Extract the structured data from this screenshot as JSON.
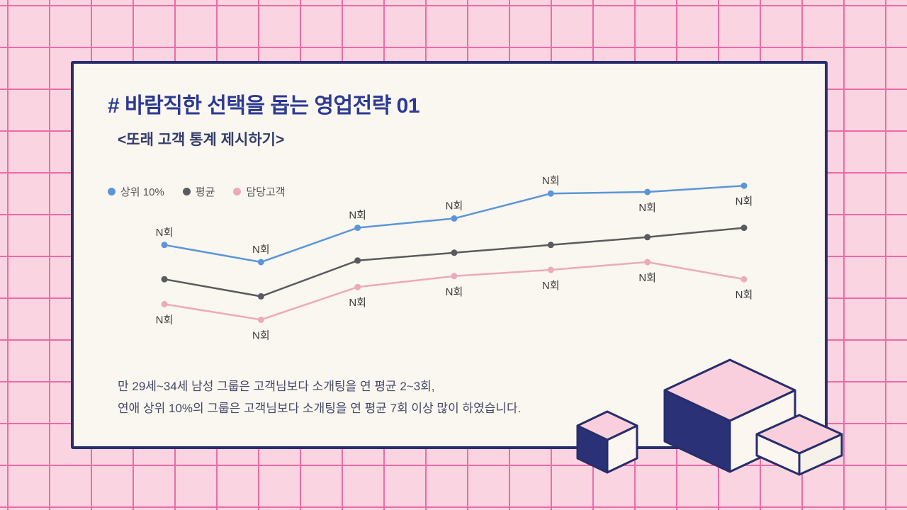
{
  "page": {
    "title": "# 바람직한 선택을 돕는 영업전략 01",
    "subtitle": "<또래 고객 통계 제시하기>",
    "footer": {
      "line1": "만 29세~34세 남성 그룹은 고객님보다 소개팅을 연 평균 2~3회,",
      "line2": "연애 상위 10%의 그룹은 고객님보다 소개팅을 연 평균 7회 이상 많이 하였습니다."
    }
  },
  "colors": {
    "background": "#fbd4e2",
    "grid_line": "#ee6ba6",
    "card_background": "#faf6f0",
    "card_border": "#272e6b",
    "title_text": "#2c3a94",
    "subtitle_text": "#353e6b",
    "body_text": "#454a68",
    "point_label_text": "#3d3d3d",
    "series_blue": "#5b96d8",
    "series_gray": "#595b5e",
    "series_pink": "#ecaabb"
  },
  "chart_data": {
    "type": "line",
    "title": "",
    "xlabel": "",
    "ylabel": "",
    "x_axis_visible": false,
    "y_axis_visible": false,
    "grid": false,
    "legend_position": "top-left",
    "point_label": "N회",
    "value_scale": "relative 0-100 (axes unlabeled; every point value shown only as 'N회')",
    "categories": [
      "1",
      "2",
      "3",
      "4",
      "5",
      "6",
      "7"
    ],
    "series": [
      {
        "name": "상위 10%",
        "color_key": "series_blue",
        "values": [
          61,
          50,
          72,
          78,
          94,
          95,
          99
        ],
        "point_labels": [
          "N회",
          "N회",
          "N회",
          "N회",
          "N회",
          "N회",
          "N회"
        ],
        "label_sides": [
          "above",
          "above",
          "above",
          "above",
          "above",
          "below",
          "below"
        ]
      },
      {
        "name": "평균",
        "color_key": "series_gray",
        "values": [
          39,
          28,
          51,
          56,
          61,
          66,
          72
        ],
        "point_labels": [],
        "label_sides": [
          null,
          null,
          null,
          null,
          null,
          null,
          null
        ]
      },
      {
        "name": "담당고객",
        "color_key": "series_pink",
        "values": [
          23,
          13,
          34,
          41,
          45,
          50,
          39
        ],
        "point_labels": [
          "N회",
          "N회",
          "N회",
          "N회",
          "N회",
          "N회",
          "N회"
        ],
        "label_sides": [
          "below",
          "below",
          "below",
          "below",
          "below",
          "below",
          "below"
        ]
      }
    ]
  }
}
